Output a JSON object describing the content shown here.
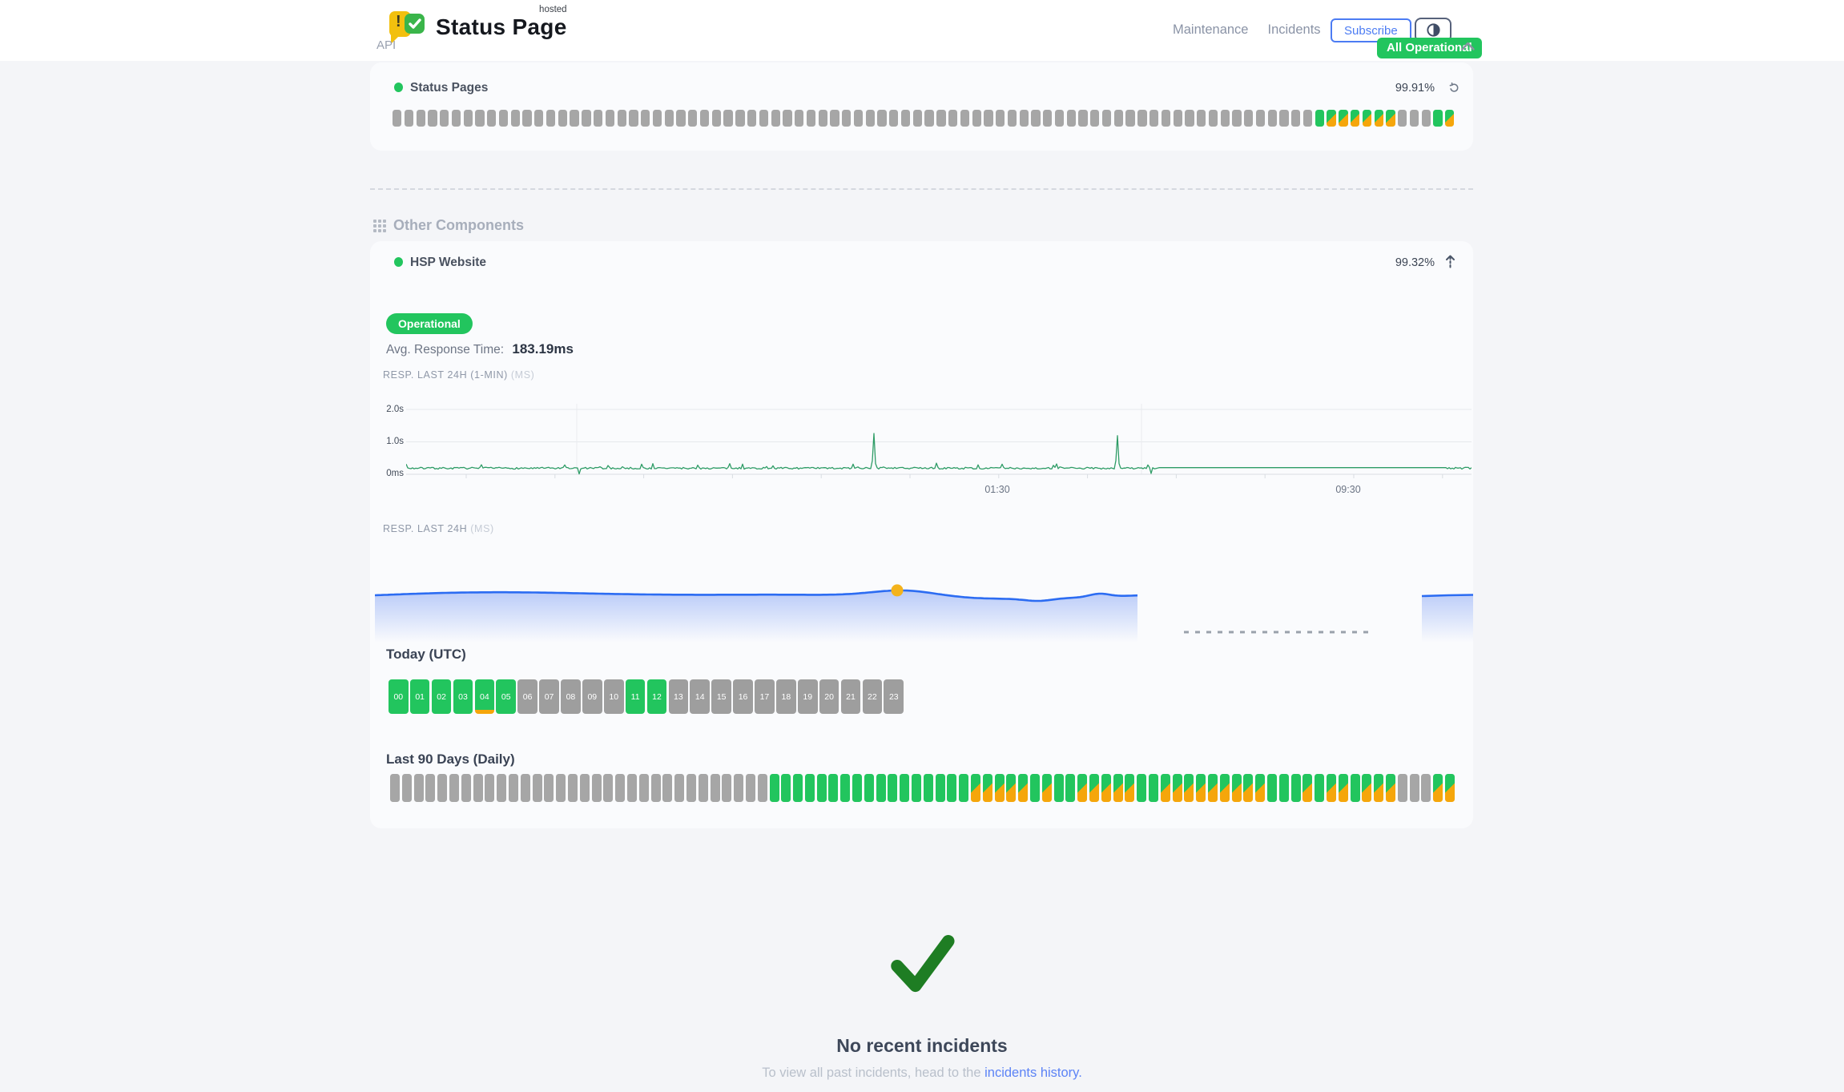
{
  "header": {
    "brand": "Status Page",
    "brand_sup": "hosted",
    "logo_bang": "!",
    "nav": [
      {
        "label": "Maintenance"
      },
      {
        "label": "Incidents"
      }
    ],
    "subscribe_label": "Subscribe",
    "overall_status": "All Operational"
  },
  "api_section": {
    "title": "API",
    "component": {
      "name": "Status Pages",
      "uptime": "99.91%",
      "bars": [
        "na",
        "na",
        "na",
        "na",
        "na",
        "na",
        "na",
        "na",
        "na",
        "na",
        "na",
        "na",
        "na",
        "na",
        "na",
        "na",
        "na",
        "na",
        "na",
        "na",
        "na",
        "na",
        "na",
        "na",
        "na",
        "na",
        "na",
        "na",
        "na",
        "na",
        "na",
        "na",
        "na",
        "na",
        "na",
        "na",
        "na",
        "na",
        "na",
        "na",
        "na",
        "na",
        "na",
        "na",
        "na",
        "na",
        "na",
        "na",
        "na",
        "na",
        "na",
        "na",
        "na",
        "na",
        "na",
        "na",
        "na",
        "na",
        "na",
        "na",
        "na",
        "na",
        "na",
        "na",
        "na",
        "na",
        "na",
        "na",
        "na",
        "na",
        "na",
        "na",
        "na",
        "na",
        "na",
        "na",
        "na",
        "na",
        "up",
        "mx",
        "mx",
        "mx",
        "mx",
        "mx",
        "mx",
        "na",
        "na",
        "na",
        "up",
        "mx"
      ]
    }
  },
  "other_section": {
    "title": "Other Components",
    "component": {
      "name": "HSP Website",
      "uptime": "99.32%",
      "status_badge": "Operational",
      "avg_label": "Avg. Response Time:",
      "avg_value": "183.19ms"
    }
  },
  "chart_data": [
    {
      "type": "line",
      "title": "RESP. LAST 24H (1-MIN)",
      "unit": "(MS)",
      "y_ticks": [
        "2.0s",
        "1.0s",
        "0ms"
      ],
      "x_ticks": [
        "01:30",
        "09:30"
      ],
      "ylim_ms": [
        0,
        2200
      ],
      "baseline_ms": 200,
      "spikes": [
        {
          "x_frac": 0.439,
          "ms": 1260
        },
        {
          "x_frac": 0.667,
          "ms": 1190
        }
      ],
      "dips": [
        {
          "x_frac": 0.162,
          "ms": 10
        },
        {
          "x_frac": 0.7,
          "ms": 25
        }
      ],
      "flat_segment": {
        "from_frac": 0.706,
        "to_frac": 0.976,
        "ms": 205
      },
      "line_color": "#2e9c66"
    },
    {
      "type": "area",
      "title": "RESP. LAST 24H",
      "unit": "(MS)",
      "marker": {
        "x_frac": 0.685,
        "color": "#f4b31c"
      },
      "gap_dashed": true,
      "line_color": "#2c6cf2"
    }
  ],
  "today": {
    "title": "Today (UTC)",
    "hours": [
      {
        "label": "00",
        "status": "up"
      },
      {
        "label": "01",
        "status": "up"
      },
      {
        "label": "02",
        "status": "up"
      },
      {
        "label": "03",
        "status": "up"
      },
      {
        "label": "04",
        "status": "updeg"
      },
      {
        "label": "05",
        "status": "up"
      },
      {
        "label": "06",
        "status": "na"
      },
      {
        "label": "07",
        "status": "na"
      },
      {
        "label": "08",
        "status": "na"
      },
      {
        "label": "09",
        "status": "na"
      },
      {
        "label": "10",
        "status": "na"
      },
      {
        "label": "11",
        "status": "up"
      },
      {
        "label": "12",
        "status": "up"
      },
      {
        "label": "13",
        "status": "na"
      },
      {
        "label": "14",
        "status": "na"
      },
      {
        "label": "15",
        "status": "na"
      },
      {
        "label": "16",
        "status": "na"
      },
      {
        "label": "17",
        "status": "na"
      },
      {
        "label": "18",
        "status": "na"
      },
      {
        "label": "19",
        "status": "na"
      },
      {
        "label": "20",
        "status": "na"
      },
      {
        "label": "21",
        "status": "na"
      },
      {
        "label": "22",
        "status": "na"
      },
      {
        "label": "23",
        "status": "na"
      }
    ]
  },
  "last90": {
    "title": "Last 90 Days (Daily)",
    "bars": [
      "na",
      "na",
      "na",
      "na",
      "na",
      "na",
      "na",
      "na",
      "na",
      "na",
      "na",
      "na",
      "na",
      "na",
      "na",
      "na",
      "na",
      "na",
      "na",
      "na",
      "na",
      "na",
      "na",
      "na",
      "na",
      "na",
      "na",
      "na",
      "na",
      "na",
      "na",
      "na",
      "up",
      "up",
      "up",
      "up",
      "up",
      "up",
      "up",
      "up",
      "up",
      "up",
      "up",
      "up",
      "up",
      "up",
      "up",
      "up",
      "up",
      "mx",
      "mx",
      "mx",
      "mx",
      "mx",
      "up",
      "mx",
      "up",
      "up",
      "mx",
      "mx",
      "mx",
      "mx",
      "mx",
      "up",
      "up",
      "mx",
      "mx",
      "mx",
      "mx",
      "mx",
      "mx",
      "mx",
      "mx",
      "mx",
      "up",
      "up",
      "up",
      "mx",
      "up",
      "mx",
      "mx",
      "up",
      "mx",
      "mx",
      "mx",
      "na",
      "na",
      "na",
      "mx",
      "mx"
    ]
  },
  "incidents": {
    "title": "No recent incidents",
    "subtext_prefix": "To view all past incidents, head to the ",
    "link_label": "incidents history",
    "subtext_suffix": "."
  },
  "colors": {
    "green": "#22c55e",
    "orange": "#f5a60b",
    "gray_bar": "#a6a6a6",
    "blue_accent": "#4c7cf3",
    "chart_green": "#2e9c66",
    "chart_blue": "#2c6cf2",
    "marker_yellow": "#f4b31c",
    "check_green": "#1e7d23"
  }
}
